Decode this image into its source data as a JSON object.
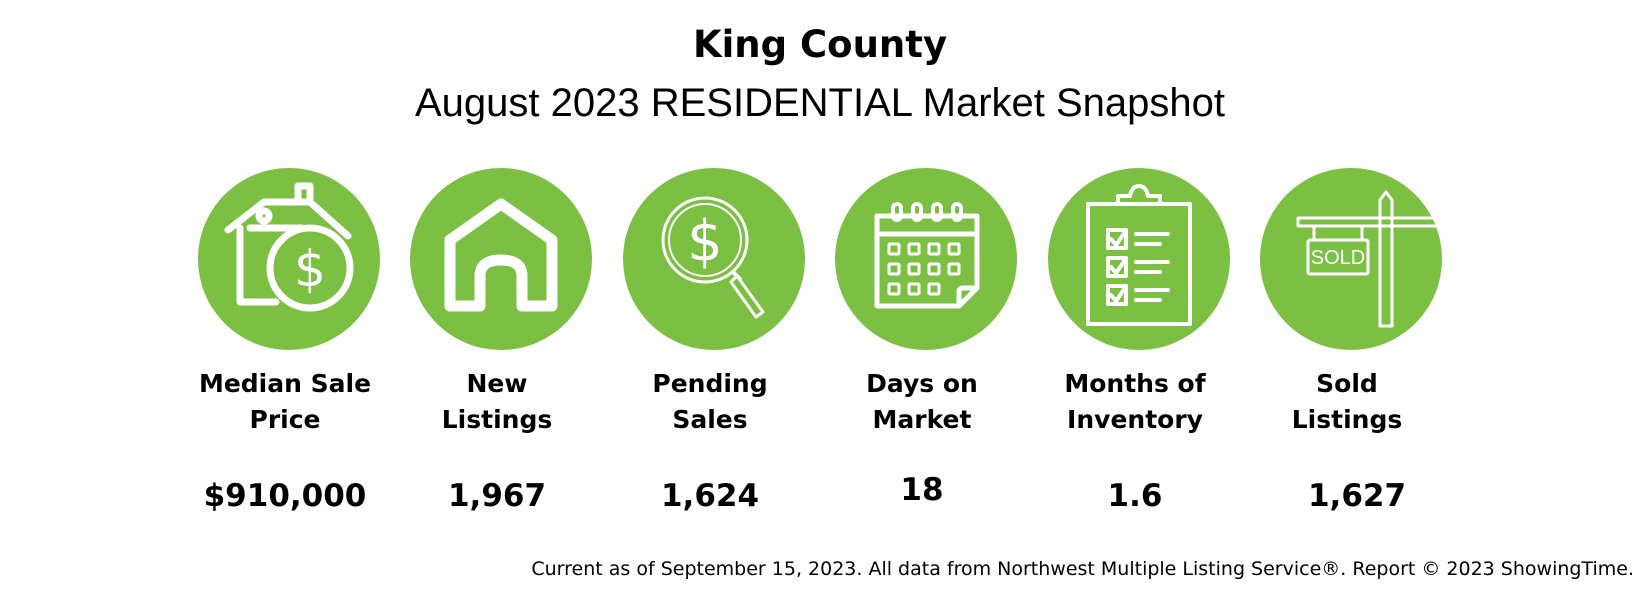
{
  "header": {
    "title": "King County",
    "subtitle": "August 2023 RESIDENTIAL Market Snapshot"
  },
  "metrics": [
    {
      "label": "Median Sale\nPrice",
      "value": "$910,000",
      "icon": "house-dollar-icon"
    },
    {
      "label": "New\nListings",
      "value": "1,967",
      "icon": "house-icon"
    },
    {
      "label": "Pending\nSales",
      "value": "1,624",
      "icon": "magnifier-dollar-icon"
    },
    {
      "label": "Days on\nMarket",
      "value": "18",
      "icon": "calendar-icon"
    },
    {
      "label": "Months of\nInventory",
      "value": "1.6",
      "icon": "clipboard-checklist-icon"
    },
    {
      "label": "Sold\nListings",
      "value": "1,627",
      "icon": "sold-sign-icon"
    }
  ],
  "sold_sign_text": "SOLD",
  "footer": "Current as of September 15, 2023. All data from Northwest Multiple Listing Service®. Report © 2023 ShowingTime.",
  "colors": {
    "accent": "#7cc043",
    "icon": "#ffffff",
    "text": "#000000"
  }
}
